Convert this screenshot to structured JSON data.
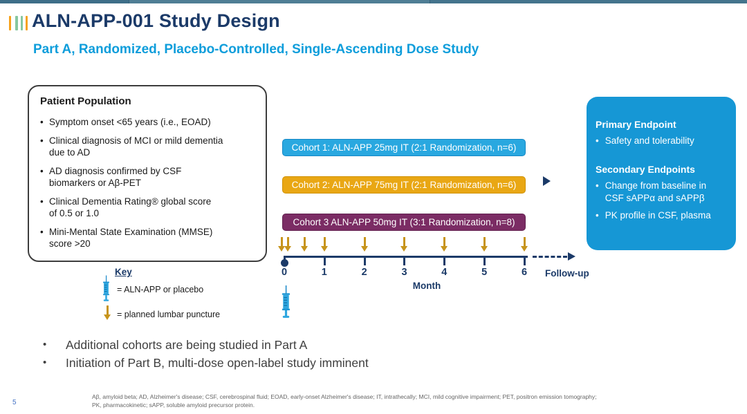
{
  "slide": {
    "title": "ALN-APP-001 Study Design",
    "subtitle": "Part A, Randomized, Placebo-Controlled, Single-Ascending Dose Study",
    "page_number": "5"
  },
  "patient_population": {
    "title": "Patient Population",
    "bullets": [
      "Symptom onset <65 years (i.e., EOAD)",
      "Clinical diagnosis of MCI or mild dementia\ndue to AD",
      "AD diagnosis confirmed by CSF\nbiomarkers or Aβ-PET",
      "Clinical Dementia Rating® global score\nof 0.5 or 1.0",
      "Mini-Mental State Examination (MMSE)\nscore >20"
    ]
  },
  "key": {
    "title": "Key",
    "items": [
      {
        "icon": "syringe-icon",
        "label": "= ALN-APP or placebo"
      },
      {
        "icon": "lumbar-puncture-arrow-icon",
        "label": "= planned lumbar puncture"
      }
    ]
  },
  "cohorts": [
    {
      "label": "Cohort 1: ALN-APP 25mg IT (2:1 Randomization, n=6)",
      "color": "#29a8e0"
    },
    {
      "label": "Cohort 2: ALN-APP 75mg IT (2:1 Randomization, n=6)",
      "color": "#e9a714"
    },
    {
      "label": "Cohort 3 ALN-APP 50mg IT (3:1 Randomization, n=8)",
      "color": "#7b2c64"
    }
  ],
  "timeline": {
    "months": [
      "0",
      "1",
      "2",
      "3",
      "4",
      "5",
      "6"
    ],
    "axis_label": "Month",
    "followup_label": "Follow-up",
    "lumbar_puncture_months": [
      0,
      0,
      0.5,
      1,
      2,
      3,
      4,
      5,
      6
    ],
    "dose_administration_month": 0
  },
  "endpoints": {
    "primary_title": "Primary Endpoint",
    "primary_bullets": [
      "Safety and tolerability"
    ],
    "secondary_title": "Secondary Endpoints",
    "secondary_bullets": [
      "Change from baseline in\nCSF sAPPα and sAPPβ",
      "PK profile in CSF, plasma"
    ]
  },
  "notes": [
    "Additional cohorts are being studied in Part A",
    "Initiation of Part B, multi-dose open-label study imminent"
  ],
  "footnote": {
    "line1": "Aβ, amyloid beta; AD, Alzheimer's disease; CSF, cerebrospinal fluid; EOAD, early-onset Alzheimer's disease; IT, intrathecally; MCI, mild cognitive impairment; PET, positron emission tomography;",
    "line2": "PK, pharmacokinetic; sAPP, soluble amyloid precursor protein."
  },
  "colors": {
    "title_navy": "#1b3a68",
    "subtitle_cyan": "#0d9ddb",
    "cohort1_blue": "#29a8e0",
    "cohort2_gold": "#e9a714",
    "cohort3_purple": "#7b2c64",
    "endpoint_box_blue": "#1697d5",
    "timeline_navy": "#1b3a68",
    "lumbar_arrow_gold": "#c7941b",
    "logo_orange": "#f6a21c",
    "logo_teal": "#86c79f"
  }
}
